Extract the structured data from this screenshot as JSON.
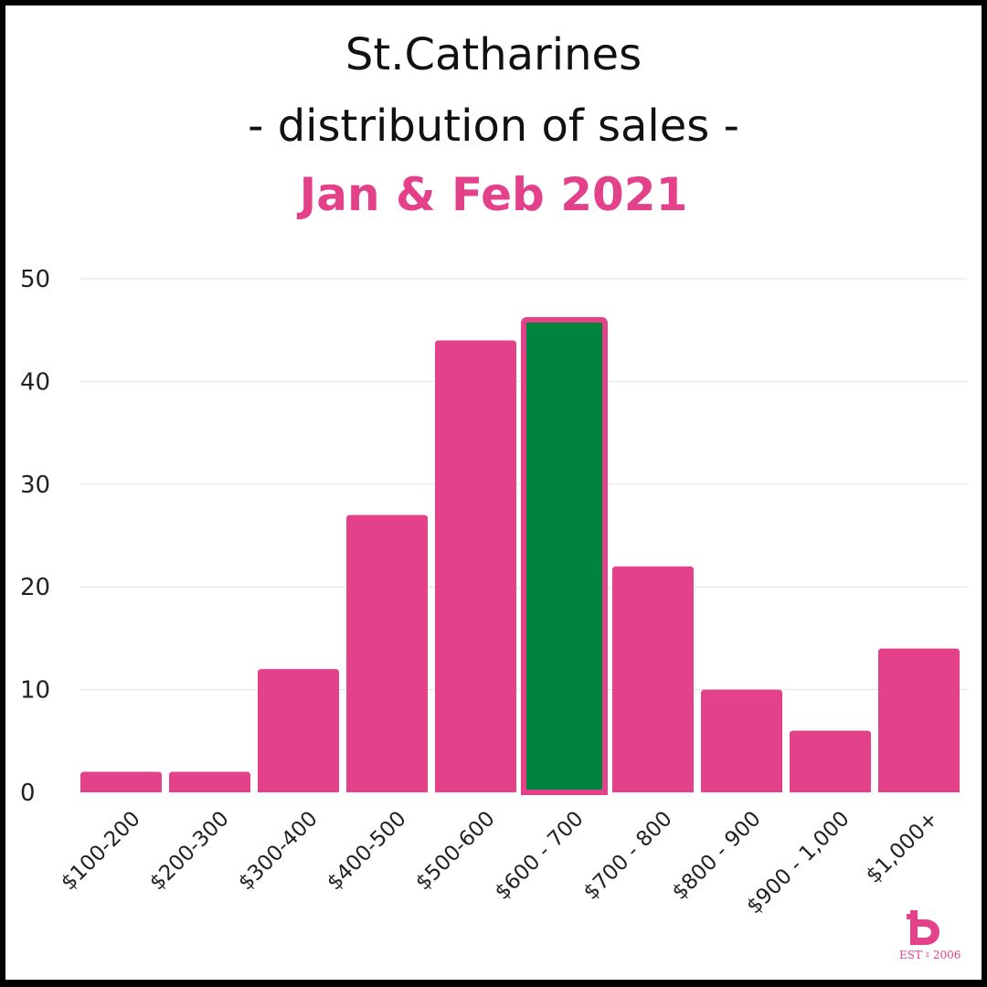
{
  "title": {
    "line1": "St.Catharines",
    "line2": "- distribution of sales -",
    "line3": "Jan & Feb 2021"
  },
  "colors": {
    "bar": "#e3418a",
    "highlight_fill": "#00843d",
    "highlight_border": "#e3418a",
    "grid": "#e2e2e2"
  },
  "chart_data": {
    "type": "bar",
    "categories": [
      "$100-200",
      "$200-300",
      "$300-400",
      "$400-500",
      "$500-600",
      "$600 - 700",
      "$700 - 800",
      "$800 - 900",
      "$900 - 1,000",
      "$1,000+"
    ],
    "values": [
      2,
      2,
      12,
      27,
      44,
      46,
      22,
      10,
      6,
      14
    ],
    "highlight_index": 5,
    "ylim": [
      0,
      50
    ],
    "yticks": [
      0,
      10,
      20,
      30,
      40,
      50
    ],
    "grid": true,
    "xlabel": "",
    "ylabel": ""
  },
  "logo": {
    "icon": "b-logo-icon",
    "text": "EST ♮ 2006"
  }
}
